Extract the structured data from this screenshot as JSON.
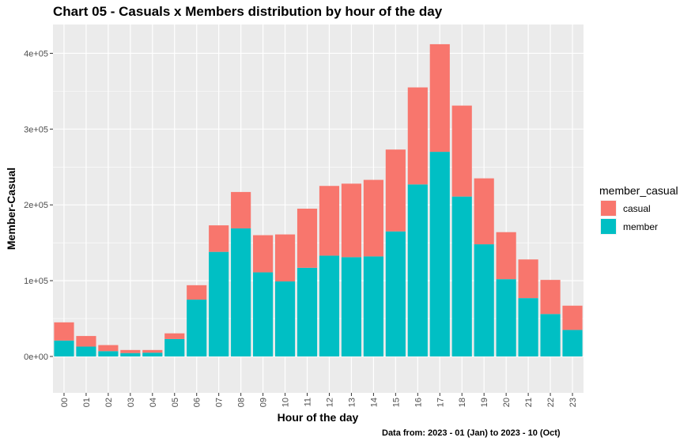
{
  "chart_data": {
    "type": "bar",
    "stacked": true,
    "title": "Chart 05 - Casuals x Members distribution by hour of the day",
    "xlabel": "Hour of the day",
    "ylabel": "Member-Casual",
    "caption": "Data from: 2023 - 01 (Jan)  to  2023 - 10 (Oct)",
    "categories": [
      "00",
      "01",
      "02",
      "03",
      "04",
      "05",
      "06",
      "07",
      "08",
      "09",
      "10",
      "11",
      "12",
      "13",
      "14",
      "15",
      "16",
      "17",
      "18",
      "19",
      "20",
      "21",
      "22",
      "23"
    ],
    "series": [
      {
        "name": "member",
        "color": "#00bfc4",
        "values": [
          21000,
          13000,
          7000,
          4500,
          5000,
          23000,
          75000,
          138000,
          169000,
          111000,
          99000,
          117000,
          133000,
          131000,
          132000,
          165000,
          227000,
          270000,
          211000,
          148000,
          102000,
          77000,
          56000,
          35000
        ]
      },
      {
        "name": "casual",
        "color": "#f8766d",
        "values": [
          24000,
          14000,
          8000,
          4000,
          3500,
          7500,
          19000,
          35000,
          48000,
          49000,
          62000,
          78000,
          92000,
          97000,
          101000,
          108000,
          128000,
          142000,
          120000,
          87000,
          62000,
          51000,
          45000,
          32000
        ]
      }
    ],
    "ylim": [
      -48000,
      438000
    ],
    "yticks": [
      0,
      100000,
      200000,
      300000,
      400000
    ],
    "ytick_labels": [
      "0e+00",
      "1e+05",
      "2e+05",
      "3e+05",
      "4e+05"
    ],
    "legend": {
      "title": "member_casual",
      "position": "right",
      "entries": [
        "casual",
        "member"
      ]
    },
    "grid": true
  }
}
